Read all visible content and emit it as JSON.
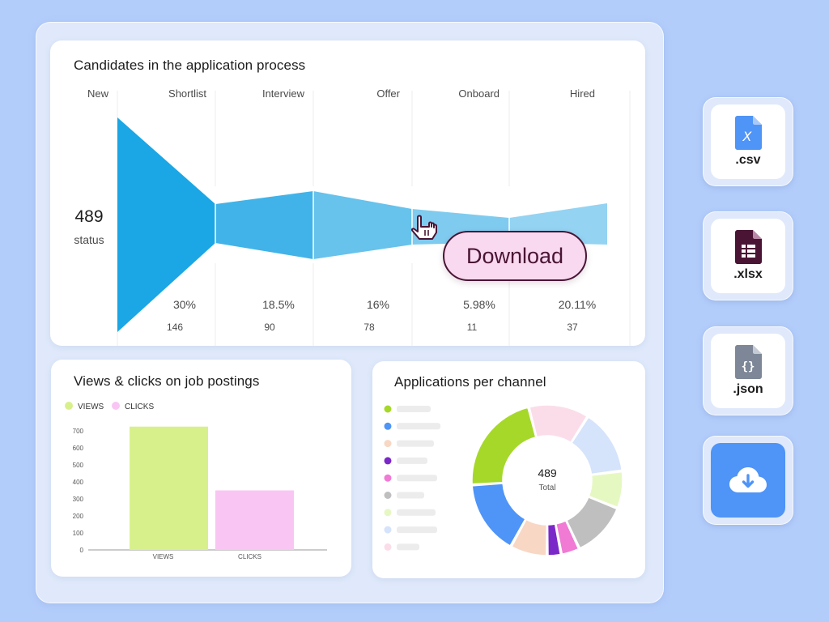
{
  "funnel": {
    "title": "Candidates in the application process",
    "total_value": "489",
    "total_label": "status",
    "stages": [
      {
        "label": "New",
        "percent": "",
        "count": "",
        "color": "#1ba6e5"
      },
      {
        "label": "Shortlist",
        "percent": "30%",
        "count": "146",
        "color": "#41b3e8"
      },
      {
        "label": "Interview",
        "percent": "18.5%",
        "count": "90",
        "color": "#67c2ec"
      },
      {
        "label": "Offer",
        "percent": "16%",
        "count": "78",
        "color": "#7fcbef"
      },
      {
        "label": "Onboard",
        "percent": "5.98%",
        "count": "11",
        "color": "#94d3f2"
      },
      {
        "label": "Hired",
        "percent": "20.11%",
        "count": "37",
        "color": "#a5dbf4"
      }
    ],
    "download_label": "Download"
  },
  "views_clicks": {
    "title": "Views & clicks on job postings",
    "legend": [
      {
        "label": "VIEWS",
        "color": "#d8f08c"
      },
      {
        "label": "CLICKS",
        "color": "#f9c6f4"
      }
    ]
  },
  "channels": {
    "title": "Applications per channel",
    "total_value": "489",
    "total_label": "Total",
    "legend_colors": [
      "#a6d82a",
      "#4f94f7",
      "#f8d7c4",
      "#7b28c9",
      "#f07ad4",
      "#bfbfbf",
      "#e6f8c2",
      "#d5e3fb",
      "#fbdde9"
    ]
  },
  "chart_data": [
    {
      "type": "bar",
      "title": "Views & clicks on job postings",
      "categories": [
        "VIEWS",
        "CLICKS"
      ],
      "series": [
        {
          "name": "VIEWS",
          "values": [
            725,
            0
          ]
        },
        {
          "name": "CLICKS",
          "values": [
            0,
            350
          ]
        }
      ],
      "yticks": [
        "0",
        "100",
        "200",
        "300",
        "400",
        "500",
        "600",
        "700"
      ],
      "ylim": [
        0,
        750
      ],
      "xlabel": "",
      "ylabel": ""
    },
    {
      "type": "pie",
      "title": "Applications per channel",
      "center_value": "489",
      "center_label": "Total",
      "slices": [
        {
          "color": "#fbdde9",
          "value": 13
        },
        {
          "color": "#d5e3fb",
          "value": 14
        },
        {
          "color": "#e6f8c2",
          "value": 8
        },
        {
          "color": "#bfbfbf",
          "value": 12
        },
        {
          "color": "#f07ad4",
          "value": 4
        },
        {
          "color": "#7b28c9",
          "value": 3
        },
        {
          "color": "#f8d7c4",
          "value": 8
        },
        {
          "color": "#4f94f7",
          "value": 16
        },
        {
          "color": "#a6d82a",
          "value": 22
        }
      ]
    }
  ],
  "exports": [
    {
      "label": ".csv",
      "icon": "csv-file-icon",
      "color": "#4f94f7",
      "glyph": "X"
    },
    {
      "label": ".xlsx",
      "icon": "xlsx-file-icon",
      "color": "#4a1434",
      "glyph": ""
    },
    {
      "label": ".json",
      "icon": "json-file-icon",
      "color": "#7d8797",
      "glyph": "{}"
    },
    {
      "label": "",
      "icon": "cloud-download-icon",
      "color": "#4f94f7",
      "glyph": ""
    }
  ]
}
